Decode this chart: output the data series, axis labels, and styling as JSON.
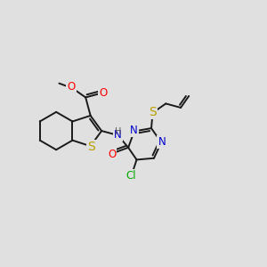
{
  "bg_color": "#e0e0e0",
  "bond_color": "#1a1a1a",
  "bond_lw": 1.4,
  "dbo": 0.09,
  "atom_colors": {
    "O": "#ff0000",
    "S": "#b8a000",
    "N": "#0000cc",
    "Cl": "#00aa00",
    "H": "#555555",
    "C": "#1a1a1a"
  },
  "fs": 8.5,
  "figsize": [
    3.0,
    3.0
  ],
  "dpi": 100
}
